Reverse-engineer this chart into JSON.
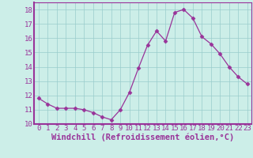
{
  "x": [
    0,
    1,
    2,
    3,
    4,
    5,
    6,
    7,
    8,
    9,
    10,
    11,
    12,
    13,
    14,
    15,
    16,
    17,
    18,
    19,
    20,
    21,
    22,
    23
  ],
  "y": [
    11.8,
    11.4,
    11.1,
    11.1,
    11.1,
    11.0,
    10.8,
    10.5,
    10.3,
    11.0,
    12.2,
    13.9,
    15.5,
    16.5,
    15.8,
    17.8,
    18.0,
    17.4,
    16.1,
    15.6,
    14.9,
    14.0,
    13.3,
    12.8
  ],
  "line_color": "#993399",
  "marker": "D",
  "marker_size": 2.5,
  "bg_color": "#cceee8",
  "grid_color": "#99cccc",
  "xlabel": "Windchill (Refroidissement éolien,°C)",
  "ylim": [
    10,
    18.5
  ],
  "xlim": [
    -0.5,
    23.5
  ],
  "yticks": [
    10,
    11,
    12,
    13,
    14,
    15,
    16,
    17,
    18
  ],
  "xticks": [
    0,
    1,
    2,
    3,
    4,
    5,
    6,
    7,
    8,
    9,
    10,
    11,
    12,
    13,
    14,
    15,
    16,
    17,
    18,
    19,
    20,
    21,
    22,
    23
  ],
  "tick_color": "#993399",
  "label_color": "#993399",
  "tick_fontsize": 6.5,
  "xlabel_fontsize": 7.5,
  "spine_color": "#993399"
}
